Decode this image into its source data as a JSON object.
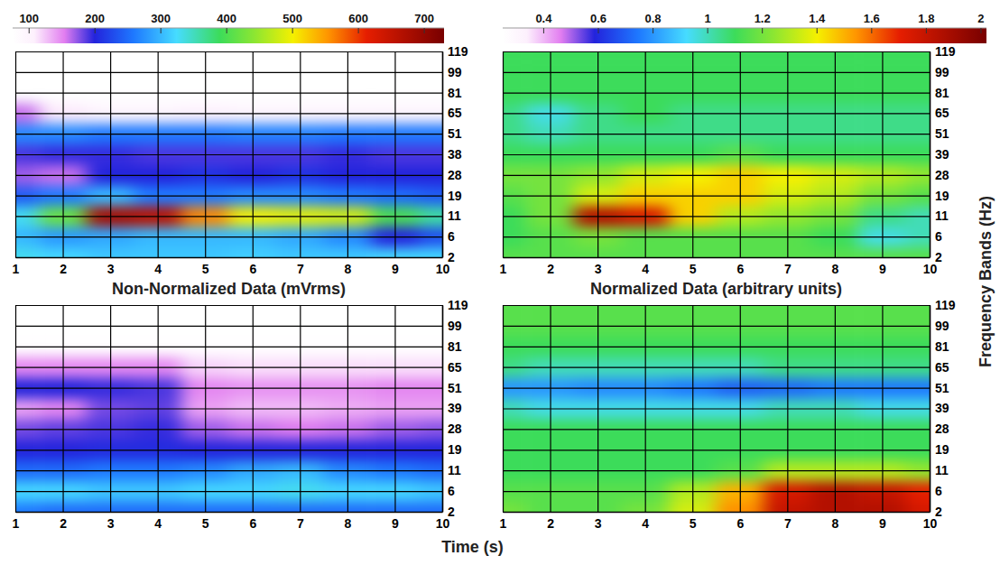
{
  "chart_data": [
    {
      "type": "heatmap",
      "title": "Non-Normalized Data (mVrms)",
      "x": [
        1,
        2,
        3,
        4,
        5,
        6,
        7,
        8,
        9,
        10
      ],
      "xlim": [
        1,
        10
      ],
      "xticks": [
        1,
        2,
        3,
        4,
        5,
        6,
        7,
        8,
        9,
        10
      ],
      "categories": [
        2,
        6,
        11,
        19,
        28,
        38,
        51,
        65,
        81,
        99,
        119
      ],
      "values": [
        [
          330,
          320,
          310,
          310,
          310,
          315,
          310,
          310,
          320,
          320
        ],
        [
          300,
          280,
          290,
          300,
          300,
          300,
          290,
          270,
          200,
          230
        ],
        [
          330,
          420,
          680,
          660,
          560,
          500,
          490,
          480,
          400,
          360
        ],
        [
          240,
          260,
          300,
          260,
          260,
          270,
          270,
          260,
          250,
          240
        ],
        [
          170,
          160,
          200,
          200,
          210,
          200,
          210,
          200,
          200,
          200
        ],
        [
          190,
          195,
          195,
          190,
          190,
          190,
          190,
          195,
          190,
          190
        ],
        [
          270,
          270,
          260,
          260,
          260,
          265,
          265,
          260,
          260,
          260
        ],
        [
          160,
          110,
          100,
          100,
          105,
          100,
          100,
          100,
          100,
          100
        ],
        [
          75,
          75,
          75,
          75,
          75,
          75,
          75,
          75,
          75,
          75
        ],
        [
          75,
          75,
          75,
          75,
          75,
          75,
          75,
          75,
          75,
          75
        ],
        [
          75,
          75,
          75,
          75,
          75,
          75,
          75,
          75,
          75,
          75
        ]
      ],
      "colorbar": {
        "range": [
          75,
          730
        ],
        "ticks": [
          100,
          200,
          300,
          400,
          500,
          600,
          700
        ]
      },
      "grid": true
    },
    {
      "type": "heatmap",
      "title": "Normalized Data (arbitrary units)",
      "x": [
        1,
        2,
        3,
        4,
        5,
        6,
        7,
        8,
        9,
        10
      ],
      "xlim": [
        1,
        10
      ],
      "xticks": [
        1,
        2,
        3,
        4,
        5,
        6,
        7,
        8,
        9,
        10
      ],
      "categories": [
        2,
        6,
        11,
        19,
        28,
        39,
        51,
        65,
        81,
        99,
        119
      ],
      "values": [
        [
          1.15,
          1.15,
          1.15,
          1.15,
          1.15,
          1.15,
          1.15,
          1.15,
          1.15,
          1.15
        ],
        [
          1.1,
          1.15,
          1.2,
          1.15,
          1.15,
          1.15,
          1.15,
          1.1,
          0.95,
          1.0
        ],
        [
          1.1,
          1.2,
          1.85,
          1.75,
          1.45,
          1.3,
          1.25,
          1.2,
          1.05,
          1.0
        ],
        [
          1.15,
          1.2,
          1.35,
          1.45,
          1.45,
          1.45,
          1.35,
          1.3,
          1.2,
          1.15
        ],
        [
          1.2,
          1.2,
          1.25,
          1.35,
          1.4,
          1.45,
          1.4,
          1.35,
          1.3,
          1.25
        ],
        [
          1.1,
          1.1,
          1.1,
          1.1,
          1.1,
          1.15,
          1.1,
          1.1,
          1.1,
          1.1
        ],
        [
          1.05,
          1.0,
          1.05,
          1.05,
          1.05,
          1.05,
          1.05,
          1.05,
          1.05,
          1.05
        ],
        [
          1.05,
          0.95,
          1.05,
          1.1,
          1.05,
          1.05,
          1.05,
          1.05,
          1.05,
          1.05
        ],
        [
          1.1,
          1.1,
          1.1,
          1.1,
          1.1,
          1.1,
          1.1,
          1.1,
          1.1,
          1.1
        ],
        [
          1.1,
          1.1,
          1.1,
          1.1,
          1.1,
          1.1,
          1.1,
          1.1,
          1.1,
          1.1
        ],
        [
          1.1,
          1.1,
          1.1,
          1.1,
          1.1,
          1.1,
          1.1,
          1.1,
          1.1,
          1.1
        ]
      ],
      "colorbar": {
        "range": [
          0.25,
          2.02
        ],
        "ticks": [
          0.4,
          0.6,
          0.8,
          1,
          1.2,
          1.4,
          1.6,
          1.8,
          2
        ]
      },
      "grid": true
    },
    {
      "type": "heatmap",
      "x": [
        1,
        2,
        3,
        4,
        5,
        6,
        7,
        8,
        9,
        10
      ],
      "xlim": [
        1,
        10
      ],
      "xticks": [
        1,
        2,
        3,
        4,
        5,
        6,
        7,
        8,
        9,
        10
      ],
      "categories": [
        2,
        6,
        11,
        19,
        28,
        39,
        51,
        65,
        81,
        99,
        119
      ],
      "values": [
        [
          260,
          250,
          250,
          250,
          250,
          250,
          250,
          250,
          250,
          250
        ],
        [
          320,
          320,
          310,
          310,
          320,
          320,
          330,
          320,
          320,
          310
        ],
        [
          250,
          250,
          260,
          260,
          270,
          290,
          300,
          270,
          260,
          250
        ],
        [
          200,
          200,
          205,
          205,
          200,
          200,
          200,
          200,
          200,
          200
        ],
        [
          180,
          185,
          190,
          195,
          170,
          160,
          155,
          160,
          170,
          175
        ],
        [
          140,
          150,
          180,
          185,
          140,
          130,
          130,
          135,
          140,
          140
        ],
        [
          200,
          200,
          195,
          190,
          150,
          145,
          145,
          145,
          150,
          150
        ],
        [
          150,
          150,
          150,
          150,
          120,
          115,
          115,
          115,
          115,
          115
        ],
        [
          80,
          80,
          80,
          80,
          80,
          80,
          80,
          80,
          80,
          80
        ],
        [
          75,
          75,
          75,
          75,
          75,
          75,
          75,
          75,
          75,
          75
        ],
        [
          75,
          75,
          75,
          75,
          75,
          75,
          75,
          75,
          75,
          75
        ]
      ],
      "grid": true
    },
    {
      "type": "heatmap",
      "x": [
        1,
        2,
        3,
        4,
        5,
        6,
        7,
        8,
        9,
        10
      ],
      "xlim": [
        1,
        10
      ],
      "xticks": [
        1,
        2,
        3,
        4,
        5,
        6,
        7,
        8,
        9,
        10
      ],
      "categories": [
        2,
        6,
        11,
        19,
        28,
        39,
        51,
        65,
        81,
        99,
        119
      ],
      "values": [
        [
          1.2,
          1.15,
          1.15,
          1.2,
          1.35,
          1.55,
          1.8,
          1.85,
          1.85,
          1.75
        ],
        [
          1.15,
          1.15,
          1.15,
          1.15,
          1.3,
          1.5,
          1.75,
          1.85,
          1.8,
          1.7
        ],
        [
          1.1,
          1.1,
          1.1,
          1.1,
          1.1,
          1.15,
          1.3,
          1.3,
          1.3,
          1.25
        ],
        [
          1.1,
          1.1,
          1.1,
          1.1,
          1.1,
          1.1,
          1.1,
          1.1,
          1.1,
          1.1
        ],
        [
          1.1,
          1.1,
          1.1,
          1.1,
          1.1,
          1.1,
          1.1,
          1.1,
          1.1,
          1.1
        ],
        [
          1.0,
          0.95,
          0.95,
          0.95,
          0.95,
          0.95,
          1.0,
          1.0,
          0.95,
          0.95
        ],
        [
          0.8,
          0.8,
          0.78,
          0.78,
          0.75,
          0.7,
          0.72,
          0.75,
          0.75,
          0.75
        ],
        [
          1.05,
          1.0,
          1.0,
          1.0,
          1.0,
          1.0,
          1.05,
          1.05,
          1.05,
          1.05
        ],
        [
          1.1,
          1.1,
          1.1,
          1.1,
          1.1,
          1.1,
          1.1,
          1.1,
          1.1,
          1.1
        ],
        [
          1.15,
          1.15,
          1.15,
          1.15,
          1.15,
          1.15,
          1.15,
          1.15,
          1.15,
          1.15
        ],
        [
          1.15,
          1.15,
          1.15,
          1.15,
          1.15,
          1.15,
          1.15,
          1.15,
          1.15,
          1.15
        ]
      ],
      "grid": true
    }
  ],
  "xlabel": "Time (s)",
  "ylabel": "Frequency Bands (Hz)"
}
